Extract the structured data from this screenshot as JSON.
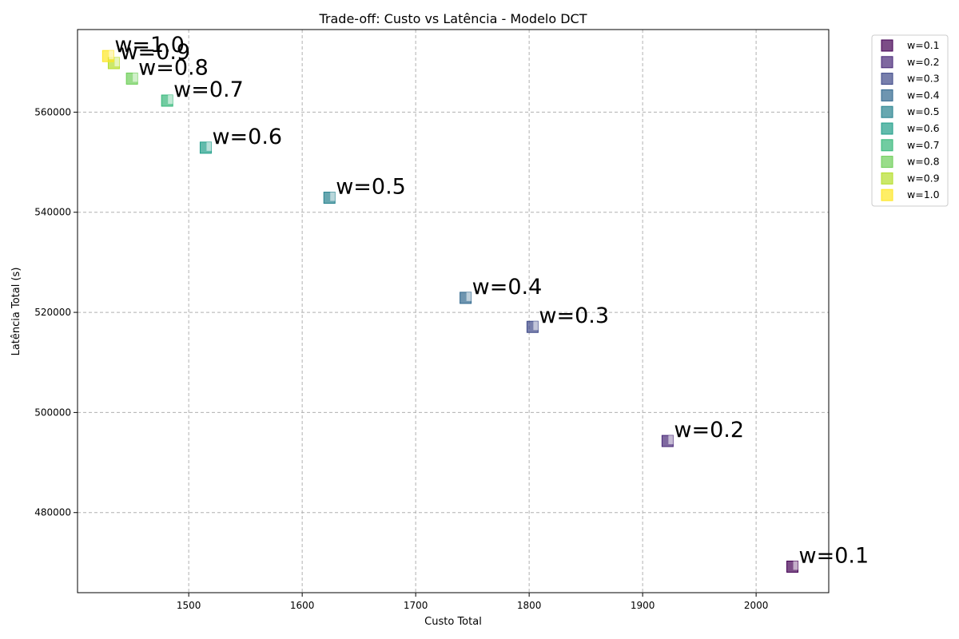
{
  "chart_data": {
    "type": "scatter",
    "title": "Trade-off: Custo vs Latência - Modelo DCT",
    "xlabel": "Custo Total",
    "ylabel": "Latência Total (s)",
    "xlim": [
      1402,
      2064
    ],
    "ylim": [
      464000,
      576500
    ],
    "xticks": [
      1500,
      1600,
      1700,
      1800,
      1900,
      2000
    ],
    "yticks": [
      480000,
      500000,
      520000,
      540000,
      560000
    ],
    "grid": true,
    "legend_position": "outside-top-right",
    "marker": "square",
    "series": [
      {
        "name": "w=0.1",
        "label": "w=0.1",
        "x": 2032,
        "y": 469200,
        "color": "#440154"
      },
      {
        "name": "w=0.2",
        "label": "w=0.2",
        "x": 1922,
        "y": 494300,
        "color": "#482878"
      },
      {
        "name": "w=0.3",
        "label": "w=0.3",
        "x": 1803,
        "y": 517100,
        "color": "#3e4989"
      },
      {
        "name": "w=0.4",
        "label": "w=0.4",
        "x": 1744,
        "y": 522900,
        "color": "#31688e"
      },
      {
        "name": "w=0.5",
        "label": "w=0.5",
        "x": 1624,
        "y": 542900,
        "color": "#26828e"
      },
      {
        "name": "w=0.6",
        "label": "w=0.6",
        "x": 1515,
        "y": 552900,
        "color": "#1f9e89"
      },
      {
        "name": "w=0.7",
        "label": "w=0.7",
        "x": 1481,
        "y": 562300,
        "color": "#35b779"
      },
      {
        "name": "w=0.8",
        "label": "w=0.8",
        "x": 1450,
        "y": 566700,
        "color": "#6ece58"
      },
      {
        "name": "w=0.9",
        "label": "w=0.9",
        "x": 1434,
        "y": 569800,
        "color": "#b5de2b"
      },
      {
        "name": "w=1.0",
        "label": "w=1.0",
        "x": 1429,
        "y": 571200,
        "color": "#fde725"
      }
    ]
  }
}
